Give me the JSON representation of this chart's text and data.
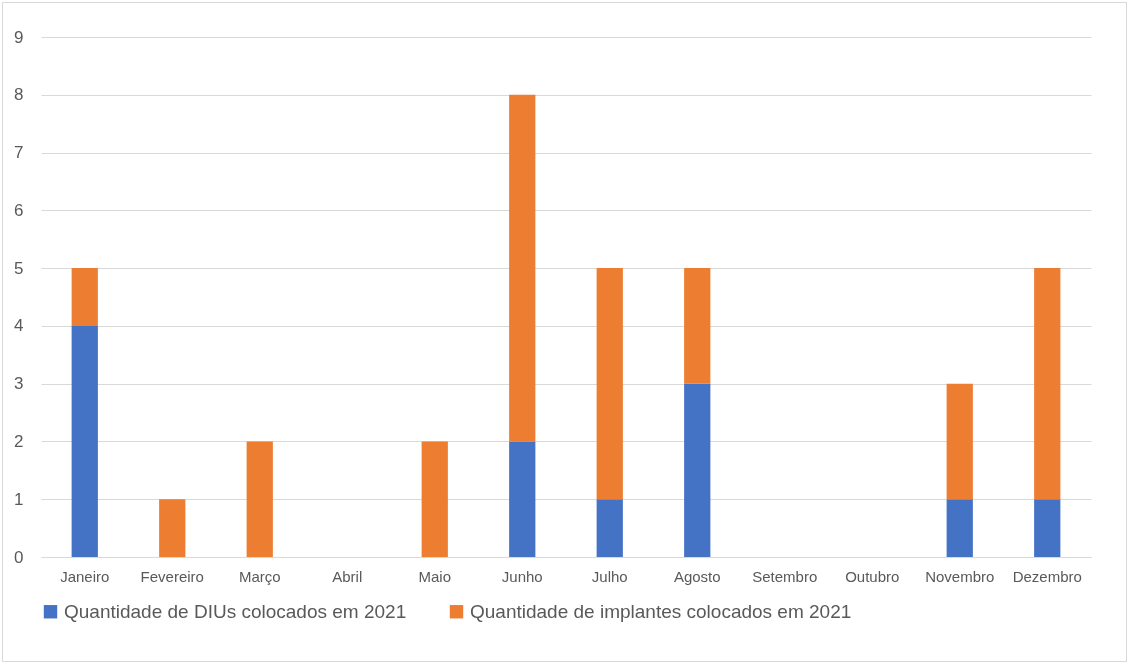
{
  "chart_data": {
    "type": "bar",
    "stacked": true,
    "categories": [
      "Janeiro",
      "Fevereiro",
      "Março",
      "Abril",
      "Maio",
      "Junho",
      "Julho",
      "Agosto",
      "Setembro",
      "Outubro",
      "Novembro",
      "Dezembro"
    ],
    "series": [
      {
        "name": "Quantidade de DIUs colocados em 2021",
        "color": "#4472c4",
        "values": [
          4,
          0,
          0,
          0,
          0,
          2,
          1,
          3,
          0,
          0,
          1,
          1
        ]
      },
      {
        "name": "Quantidade de implantes colocados em 2021",
        "color": "#ed7d31",
        "values": [
          1,
          1,
          2,
          0,
          2,
          6,
          4,
          2,
          0,
          0,
          2,
          4
        ]
      }
    ],
    "ylim": [
      0,
      9
    ],
    "yticks": [
      0,
      1,
      2,
      3,
      4,
      5,
      6,
      7,
      8,
      9
    ],
    "grid": "y",
    "legend": "bottom"
  }
}
